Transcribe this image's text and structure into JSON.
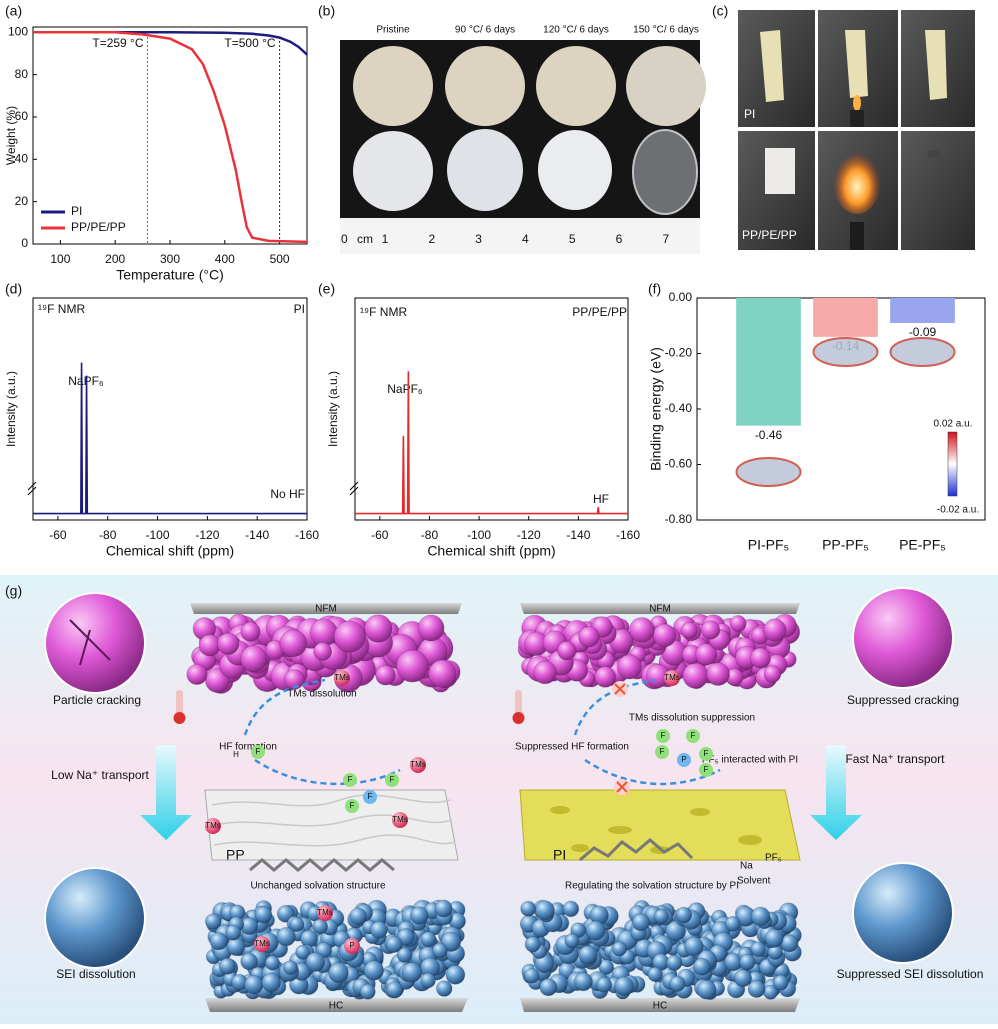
{
  "chart_data": [
    {
      "type": "line",
      "panel_label": "(a)",
      "x_label": "Temperature (°C)",
      "y_label": "Weight (%)",
      "xlim": [
        50,
        550
      ],
      "ylim": [
        0,
        102.5
      ],
      "xticks": [
        100,
        200,
        300,
        400,
        500
      ],
      "yticks": [
        0,
        20,
        40,
        60,
        80,
        100
      ],
      "legend": "lower left",
      "series": [
        {
          "name": "PI",
          "color": "#1c1c80",
          "x": [
            50,
            200,
            300,
            400,
            450,
            480,
            500,
            520,
            535,
            550
          ],
          "values": [
            100,
            100,
            100,
            99.8,
            99.3,
            98.5,
            97.5,
            95.5,
            93,
            89.5
          ]
        },
        {
          "name": "PP/PE/PP",
          "color": "#e8333a",
          "x": [
            50,
            200,
            250,
            300,
            340,
            360,
            380,
            400,
            420,
            430,
            440,
            450,
            480,
            550
          ],
          "values": [
            100,
            100,
            99,
            97,
            92,
            85,
            72,
            56,
            35,
            21,
            8,
            3,
            1.5,
            1
          ]
        }
      ],
      "annotations": [
        {
          "text": "T=259 °C",
          "x": 259,
          "color": "#e8333a"
        },
        {
          "text": "T=500 °C",
          "x": 500,
          "color": "#1c1c80"
        }
      ]
    },
    {
      "type": "line",
      "panel_label": "(d)",
      "x_label": "Chemical shift (ppm)",
      "y_label": "Intensity (a.u.)",
      "xlim": [
        -50,
        -160
      ],
      "ylim": [
        -3,
        100
      ],
      "xticks": [
        -60,
        -80,
        -100,
        -120,
        -140,
        -160
      ],
      "series": [
        {
          "name": "PI",
          "color": "#1c1c80",
          "x": [
            -50,
            -69.2,
            -69.5,
            -69.8,
            -71.2,
            -71.5,
            -71.8,
            -160
          ],
          "values": [
            0,
            0,
            70,
            0,
            0,
            64,
            0,
            0
          ]
        }
      ],
      "annotations": [
        {
          "text": "¹⁹F NMR"
        },
        {
          "text": "PI"
        },
        {
          "text": "NaPF₆"
        },
        {
          "text": "No HF"
        }
      ]
    },
    {
      "type": "line",
      "panel_label": "(e)",
      "x_label": "Chemical shift (ppm)",
      "y_label": "Intensity (a.u.)",
      "xlim": [
        -50,
        -160
      ],
      "ylim": [
        -3,
        100
      ],
      "xticks": [
        -60,
        -80,
        -100,
        -120,
        -140,
        -160
      ],
      "series": [
        {
          "name": "PP/PE/PP",
          "color": "#e32b2b",
          "x": [
            -50,
            -69.2,
            -69.5,
            -69.8,
            -71.2,
            -71.5,
            -71.8,
            -147.7,
            -148,
            -148.3,
            -160
          ],
          "values": [
            0,
            0,
            36,
            0,
            0,
            66,
            0,
            0,
            3,
            0,
            0
          ]
        }
      ],
      "annotations": [
        {
          "text": "¹⁹F NMR"
        },
        {
          "text": "PP/PE/PP"
        },
        {
          "text": "NaPF₆"
        },
        {
          "text": "HF"
        }
      ]
    },
    {
      "type": "bar",
      "panel_label": "(f)",
      "y_label": "Binding energy (eV)",
      "ylim": [
        -0.8,
        0
      ],
      "yticks": [
        {
          "value": 0,
          "label": "0.00"
        },
        {
          "value": -0.2,
          "label": "-0.20"
        },
        {
          "value": -0.4,
          "label": "-0.40"
        },
        {
          "value": -0.6,
          "label": "-0.60"
        },
        {
          "value": -0.8,
          "label": "-0.80"
        }
      ],
      "categories": [
        "PI-PF₅",
        "PP-PF₅",
        "PE-PF₅"
      ],
      "values": [
        -0.46,
        -0.14,
        -0.09
      ],
      "colors": [
        "#7fd3c3",
        "#f5aaa8",
        "#9aa5f0"
      ],
      "annotations": [
        {
          "text": "0.02 a.u."
        },
        {
          "text": "-0.02 a.u."
        }
      ]
    }
  ],
  "photos_b": {
    "panel_label": "(b)",
    "columns": [
      "Pristine",
      "90 °C/ 6 days",
      "120 °C/ 6 days",
      "150 °C/ 6 days"
    ],
    "ruler_start": "0",
    "ruler_unit": "cm",
    "ruler": [
      1,
      2,
      3,
      4,
      5,
      6,
      7
    ]
  },
  "photos_c": {
    "panel_label": "(c)",
    "rows": [
      "PI",
      "PP/PE/PP"
    ]
  },
  "schematic": {
    "panel_label": "(g)",
    "left": {
      "layer_top": "NFM",
      "layer_bottom": "HC",
      "top_inset": "Particle cracking",
      "transport": "Low Na⁺ transport",
      "bottom_inset": "SEI dissolution",
      "hf": "HF formation",
      "tms": "TMs dissolution",
      "separator": "PP",
      "solvation": "Unchanged solvation structure",
      "atoms": [
        "H",
        "F",
        "TMs",
        "TMs",
        "TMs",
        "TMs",
        "TMs",
        "TMs",
        "P",
        "F",
        "F",
        "F",
        "F"
      ]
    },
    "right": {
      "layer_top": "NFM",
      "layer_bottom": "HC",
      "top_inset": "Suppressed cracking",
      "transport": "Fast Na⁺ transport",
      "bottom_inset": "Suppressed SEI dissolution",
      "hf": "Suppressed HF formation",
      "tms": "TMs dissolution suppression",
      "pf5": "PF₅ interacted  with PI",
      "separator": "PI",
      "solvation": "Regulating the solvation structure by PI",
      "solvent": "Solvent",
      "salt": "PF₆",
      "na": "Na",
      "atoms": [
        "TMs",
        "P",
        "F",
        "F",
        "F",
        "F",
        "F"
      ]
    }
  }
}
